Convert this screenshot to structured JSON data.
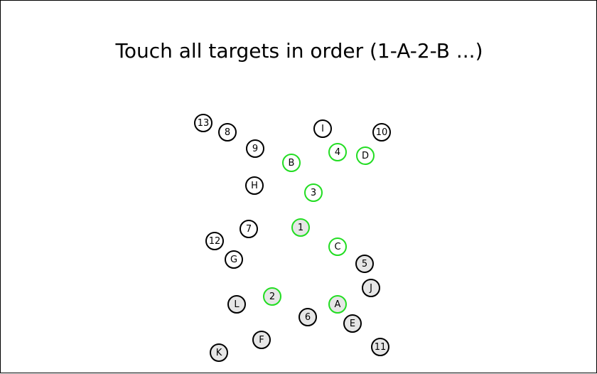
{
  "instruction": "Touch all targets in order (1-A-2-B ...)",
  "colors": {
    "touched_ring": "#22dd22",
    "default_ring": "#000000",
    "shaded_fill": "#e6e6e6"
  },
  "targets": [
    {
      "label": "13",
      "state": "untouched",
      "shaded": false
    },
    {
      "label": "8",
      "state": "untouched",
      "shaded": false
    },
    {
      "label": "9",
      "state": "untouched",
      "shaded": false
    },
    {
      "label": "I",
      "state": "untouched",
      "shaded": false
    },
    {
      "label": "10",
      "state": "untouched",
      "shaded": false
    },
    {
      "label": "B",
      "state": "touched",
      "shaded": false
    },
    {
      "label": "4",
      "state": "touched",
      "shaded": false
    },
    {
      "label": "D",
      "state": "touched",
      "shaded": false
    },
    {
      "label": "H",
      "state": "untouched",
      "shaded": false
    },
    {
      "label": "3",
      "state": "touched",
      "shaded": false
    },
    {
      "label": "7",
      "state": "untouched",
      "shaded": false
    },
    {
      "label": "1",
      "state": "touched",
      "shaded": true
    },
    {
      "label": "12",
      "state": "untouched",
      "shaded": false
    },
    {
      "label": "C",
      "state": "touched",
      "shaded": false
    },
    {
      "label": "G",
      "state": "untouched",
      "shaded": false
    },
    {
      "label": "5",
      "state": "untouched",
      "shaded": true
    },
    {
      "label": "J",
      "state": "untouched",
      "shaded": true
    },
    {
      "label": "L",
      "state": "untouched",
      "shaded": true
    },
    {
      "label": "2",
      "state": "touched",
      "shaded": true
    },
    {
      "label": "A",
      "state": "touched",
      "shaded": true
    },
    {
      "label": "6",
      "state": "untouched",
      "shaded": true
    },
    {
      "label": "E",
      "state": "untouched",
      "shaded": true
    },
    {
      "label": "F",
      "state": "untouched",
      "shaded": true
    },
    {
      "label": "11",
      "state": "untouched",
      "shaded": true
    },
    {
      "label": "K",
      "state": "untouched",
      "shaded": true
    }
  ]
}
